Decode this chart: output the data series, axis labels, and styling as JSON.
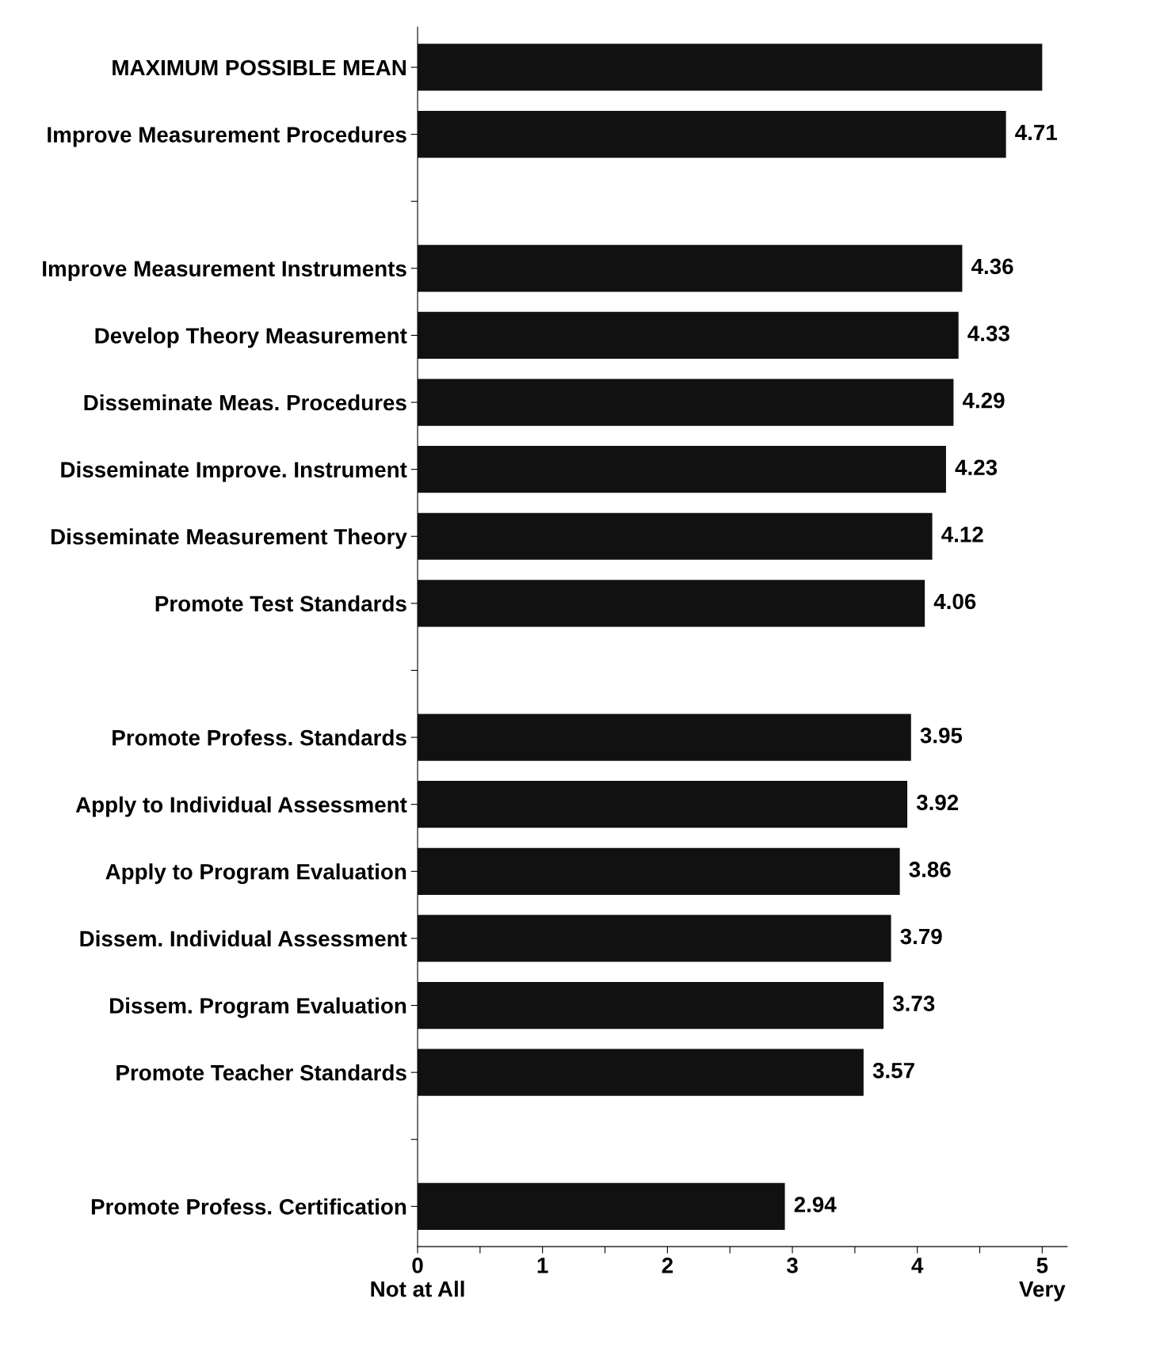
{
  "chart_data": {
    "type": "bar",
    "orientation": "horizontal",
    "categories": [
      "MAXIMUM POSSIBLE MEAN",
      "Improve Measurement Procedures",
      null,
      "Improve Measurement Instruments",
      "Develop Theory Measurement",
      "Disseminate Meas. Procedures",
      "Disseminate Improve. Instrument",
      "Disseminate Measurement Theory",
      "Promote Test Standards",
      null,
      "Promote Profess. Standards",
      "Apply to Individual Assessment",
      "Apply to Program Evaluation",
      "Dissem. Individual Assessment",
      "Dissem. Program Evaluation",
      "Promote Teacher Standards",
      null,
      "Promote Profess. Certification"
    ],
    "values": [
      5,
      4.71,
      null,
      4.36,
      4.33,
      4.29,
      4.23,
      4.12,
      4.06,
      null,
      3.95,
      3.92,
      3.86,
      3.79,
      3.73,
      3.57,
      null,
      2.94
    ],
    "value_labels": [
      null,
      "4.71",
      null,
      "4.36",
      "4.33",
      "4.29",
      "4.23",
      "4.12",
      "4.06",
      null,
      "3.95",
      "3.92",
      "3.86",
      "3.79",
      "3.73",
      "3.57",
      null,
      "2.94"
    ],
    "color": "#111111",
    "xlim": [
      0,
      5.2
    ],
    "xticks": [
      {
        "value": 0,
        "label": "0\nNot at All"
      },
      {
        "value": 0.5,
        "label": null
      },
      1,
      {
        "value": 1.5,
        "label": null
      },
      2,
      {
        "value": 2.5,
        "label": null
      },
      3,
      {
        "value": 3.5,
        "label": null
      },
      4,
      {
        "value": 4.5,
        "label": null
      },
      {
        "value": 5,
        "label": "5\nVery"
      }
    ],
    "grid": false,
    "legend": false
  }
}
